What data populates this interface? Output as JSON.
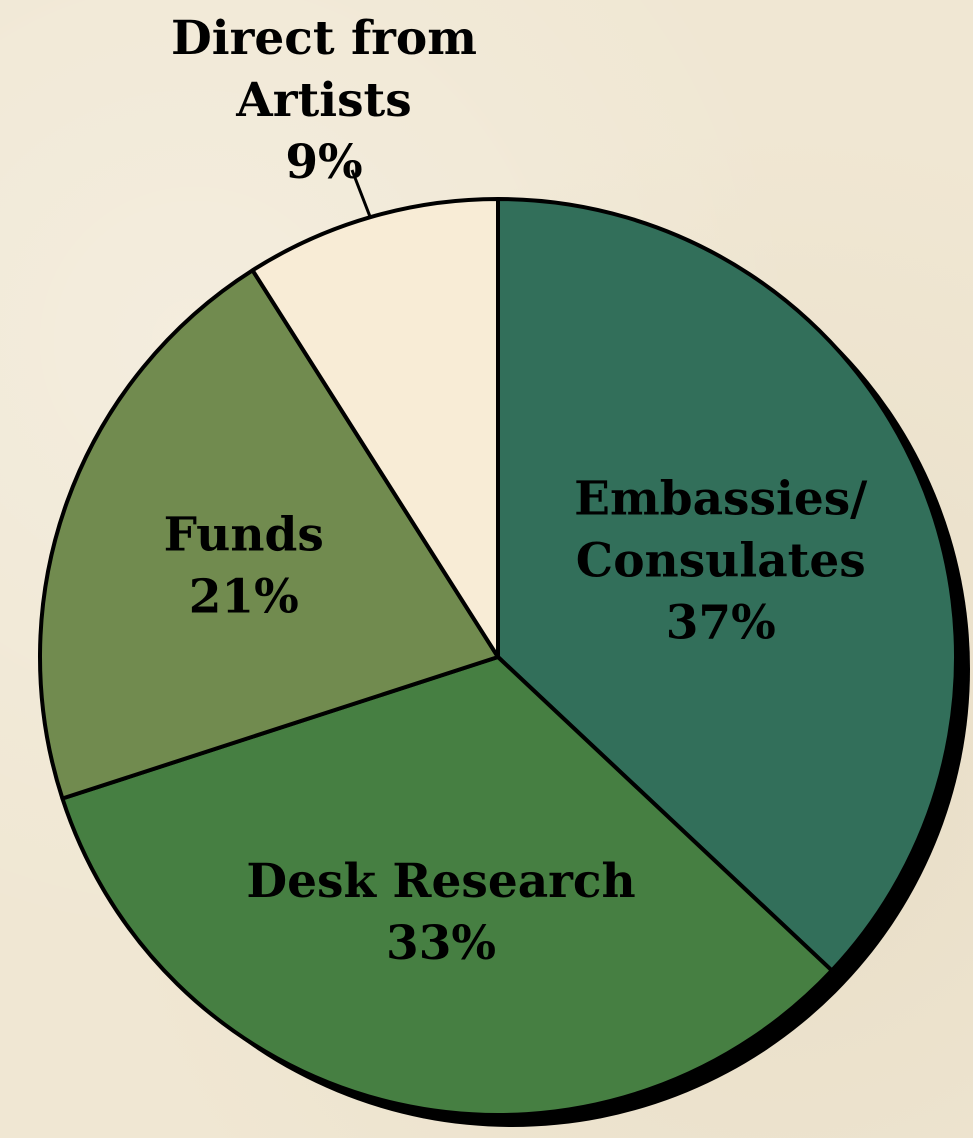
{
  "chart_data": {
    "type": "pie",
    "start": "12 o'clock",
    "direction": "clockwise",
    "slices": [
      {
        "name": "Embassies/ Consulates",
        "lines": [
          "Embassies/",
          "Consulates"
        ],
        "value": 37,
        "value_label": "37%",
        "color": "#326f5a"
      },
      {
        "name": "Desk Research",
        "lines": [
          "Desk Research"
        ],
        "value": 33,
        "value_label": "33%",
        "color": "#467f42"
      },
      {
        "name": "Funds",
        "lines": [
          "Funds"
        ],
        "value": 21,
        "value_label": "21%",
        "color": "#718b4f"
      },
      {
        "name": "Direct from Artists",
        "lines": [
          "Direct from",
          "Artists"
        ],
        "value": 9,
        "value_label": "9%",
        "color": "#f8ecd6"
      }
    ],
    "shadow_color": "#000000",
    "background_color": "#f0e7d3"
  }
}
